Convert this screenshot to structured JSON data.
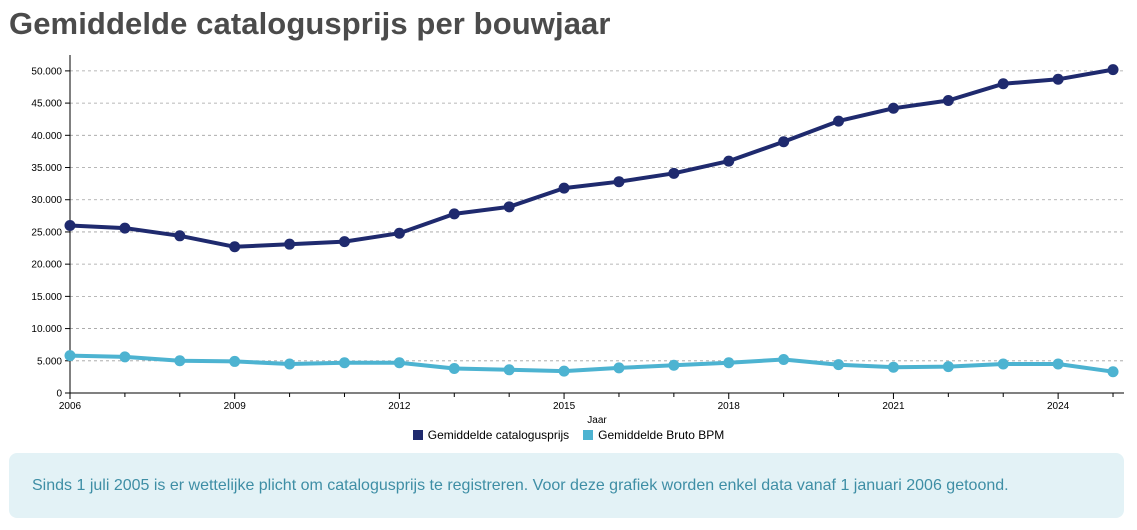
{
  "page": {
    "title": "Gemiddelde catalogusprijs per bouwjaar",
    "note": "Sinds 1 juli 2005 is er wettelijke plicht om catalogusprijs te registreren. Voor deze grafiek worden enkel data vanaf 1 januari 2006 getoond."
  },
  "chart_data": {
    "type": "line",
    "title": "Gemiddelde catalogusprijs per bouwjaar",
    "xlabel": "Jaar",
    "ylabel": "",
    "x": [
      2006,
      2007,
      2008,
      2009,
      2010,
      2011,
      2012,
      2013,
      2014,
      2015,
      2016,
      2017,
      2018,
      2019,
      2020,
      2021,
      2022,
      2023,
      2024,
      2025
    ],
    "xlim": [
      2006,
      2025.2
    ],
    "x_ticks": [
      2006,
      2009,
      2012,
      2015,
      2018,
      2021,
      2024
    ],
    "x_tick_labels": [
      "2006",
      "2009",
      "2012",
      "2015",
      "2018",
      "2021",
      "2024"
    ],
    "ylim": [
      0,
      52000
    ],
    "y_ticks": [
      0,
      5000,
      10000,
      15000,
      20000,
      25000,
      30000,
      35000,
      40000,
      45000,
      50000
    ],
    "y_tick_labels": [
      "0",
      "5.000",
      "10.000",
      "15.000",
      "20.000",
      "25.000",
      "30.000",
      "35.000",
      "40.000",
      "45.000",
      "50.000"
    ],
    "grid": "horizontal dashed",
    "legend_position": "bottom",
    "series": [
      {
        "name": "Gemiddelde catalogusprijs",
        "color": "#1f2a6e",
        "values": [
          26000,
          25600,
          24400,
          22700,
          23100,
          23500,
          24800,
          27800,
          28900,
          31800,
          32800,
          34100,
          36000,
          39000,
          42200,
          44200,
          45400,
          48000,
          48700,
          50200
        ]
      },
      {
        "name": "Gemiddelde Bruto BPM",
        "color": "#4db3d1",
        "values": [
          5800,
          5600,
          5000,
          4900,
          4500,
          4700,
          4700,
          3800,
          3600,
          3400,
          3900,
          4300,
          4700,
          5200,
          4400,
          4000,
          4100,
          4500,
          4500,
          3300
        ]
      }
    ]
  }
}
